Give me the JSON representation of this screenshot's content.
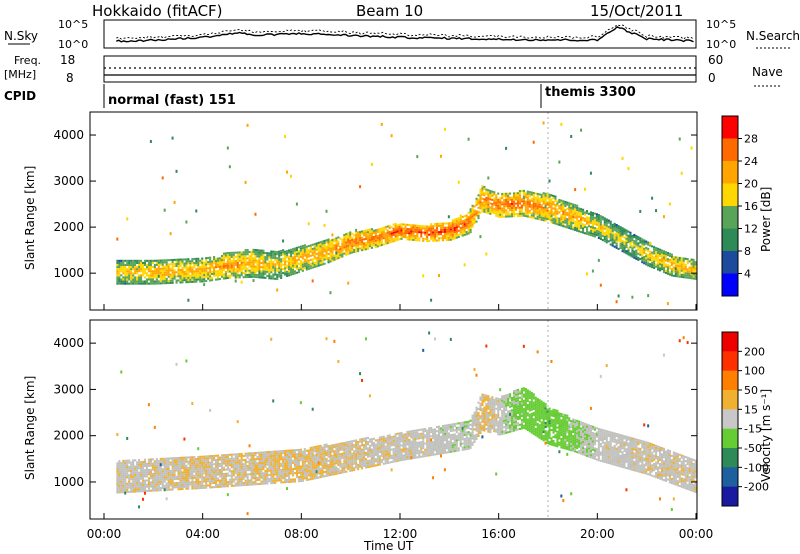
{
  "header": {
    "station": "Hokkaido (fitACF)",
    "beam": "Beam 10",
    "date": "15/Oct/2011"
  },
  "panels": {
    "nsky": {
      "left_label": "N.Sky",
      "right_label": "N.Search",
      "ticks_left": [
        "10^5",
        "10^0"
      ],
      "ticks_right": [
        "10^5",
        "10^0"
      ]
    },
    "freq": {
      "left_label_1": "Freq.",
      "left_label_2": "[MHz]",
      "right_label": "Nave",
      "ticks_left": [
        "18",
        "8"
      ],
      "ticks_right": [
        "60",
        "0"
      ]
    },
    "cpid": {
      "label": "CPID",
      "modes": [
        "normal (fast) 151",
        "themis 3300"
      ]
    },
    "power": {
      "ylabel": "Slant Range [km]",
      "cbar_label": "Power [dB]",
      "cbar_ticks": [
        "28",
        "24",
        "20",
        "16",
        "12",
        "8",
        "4"
      ]
    },
    "velocity": {
      "ylabel": "Slant Range [km]",
      "cbar_label": "Velocity [m s⁻¹]",
      "cbar_ticks": [
        "200",
        "100",
        "50",
        "15",
        "-15",
        "-50",
        "-100",
        "-200"
      ]
    }
  },
  "xaxis": {
    "label": "Time UT",
    "ticks": [
      "00:00",
      "04:00",
      "08:00",
      "12:00",
      "16:00",
      "20:00",
      "00:00"
    ]
  },
  "yticks": [
    "4000",
    "3000",
    "2000",
    "1000"
  ],
  "colors": {
    "power_scale": [
      "#0000ff",
      "#1e4a9e",
      "#2e8b57",
      "#5aa45a",
      "#ffd700",
      "#ffa500",
      "#ff6a00",
      "#ff0000"
    ],
    "velocity_scale": [
      "#1a1aa0",
      "#1e5fa0",
      "#2e8b57",
      "#66cc33",
      "#c8c8c8",
      "#f0b030",
      "#ff7f00",
      "#ff3000",
      "#ee0000"
    ],
    "ground_scatter": "#c0c0bc"
  },
  "chart_data": {
    "type": "heatmap",
    "x_unit": "hours UT",
    "xlim": [
      0,
      24
    ],
    "ylim": [
      200,
      4500
    ],
    "mode_change_time": 18.0,
    "mode_start_time": 0.5,
    "power_band": {
      "x": [
        0.5,
        2,
        4,
        5,
        6,
        7,
        8,
        9,
        10,
        11,
        12,
        13,
        14,
        14.8,
        15.3,
        16,
        17,
        18,
        19,
        20,
        21,
        22,
        23,
        24
      ],
      "center": [
        1000,
        1000,
        1050,
        1150,
        1200,
        1150,
        1300,
        1450,
        1650,
        1750,
        1900,
        1850,
        1900,
        2100,
        2600,
        2450,
        2500,
        2400,
        2200,
        2000,
        1700,
        1400,
        1150,
        1050
      ],
      "width": [
        500,
        500,
        500,
        550,
        600,
        600,
        550,
        500,
        450,
        400,
        350,
        350,
        400,
        500,
        550,
        500,
        550,
        600,
        550,
        500,
        500,
        500,
        450,
        400
      ],
      "values_db": [
        20,
        22,
        22,
        24,
        22,
        20,
        22,
        24,
        26,
        26,
        28,
        28,
        28,
        26,
        24,
        26,
        26,
        24,
        22,
        20,
        18,
        20,
        22,
        22
      ]
    },
    "velocity_band": {
      "x": [
        0.5,
        4,
        8,
        12,
        14.8,
        15.3,
        16,
        17,
        18,
        19,
        20,
        22,
        24
      ],
      "center": [
        1100,
        1200,
        1350,
        1750,
        2000,
        2500,
        2400,
        2600,
        2200,
        2000,
        1800,
        1500,
        1100
      ],
      "width": [
        700,
        700,
        700,
        600,
        600,
        800,
        800,
        900,
        800,
        700,
        700,
        700,
        700
      ],
      "values_ms": [
        -5,
        -10,
        -15,
        -5,
        5,
        -20,
        0,
        30,
        40,
        20,
        0,
        -5,
        -5
      ]
    },
    "nsky_series": {
      "x": [
        0.5,
        2,
        4,
        5.5,
        6,
        8,
        10,
        12,
        14,
        16,
        18,
        20,
        20.8,
        22,
        24
      ],
      "log_values": [
        1.0,
        1.2,
        1.8,
        2.8,
        2.2,
        2.6,
        2.2,
        1.8,
        1.6,
        1.4,
        1.3,
        1.2,
        4.0,
        1.5,
        1.0
      ]
    }
  }
}
